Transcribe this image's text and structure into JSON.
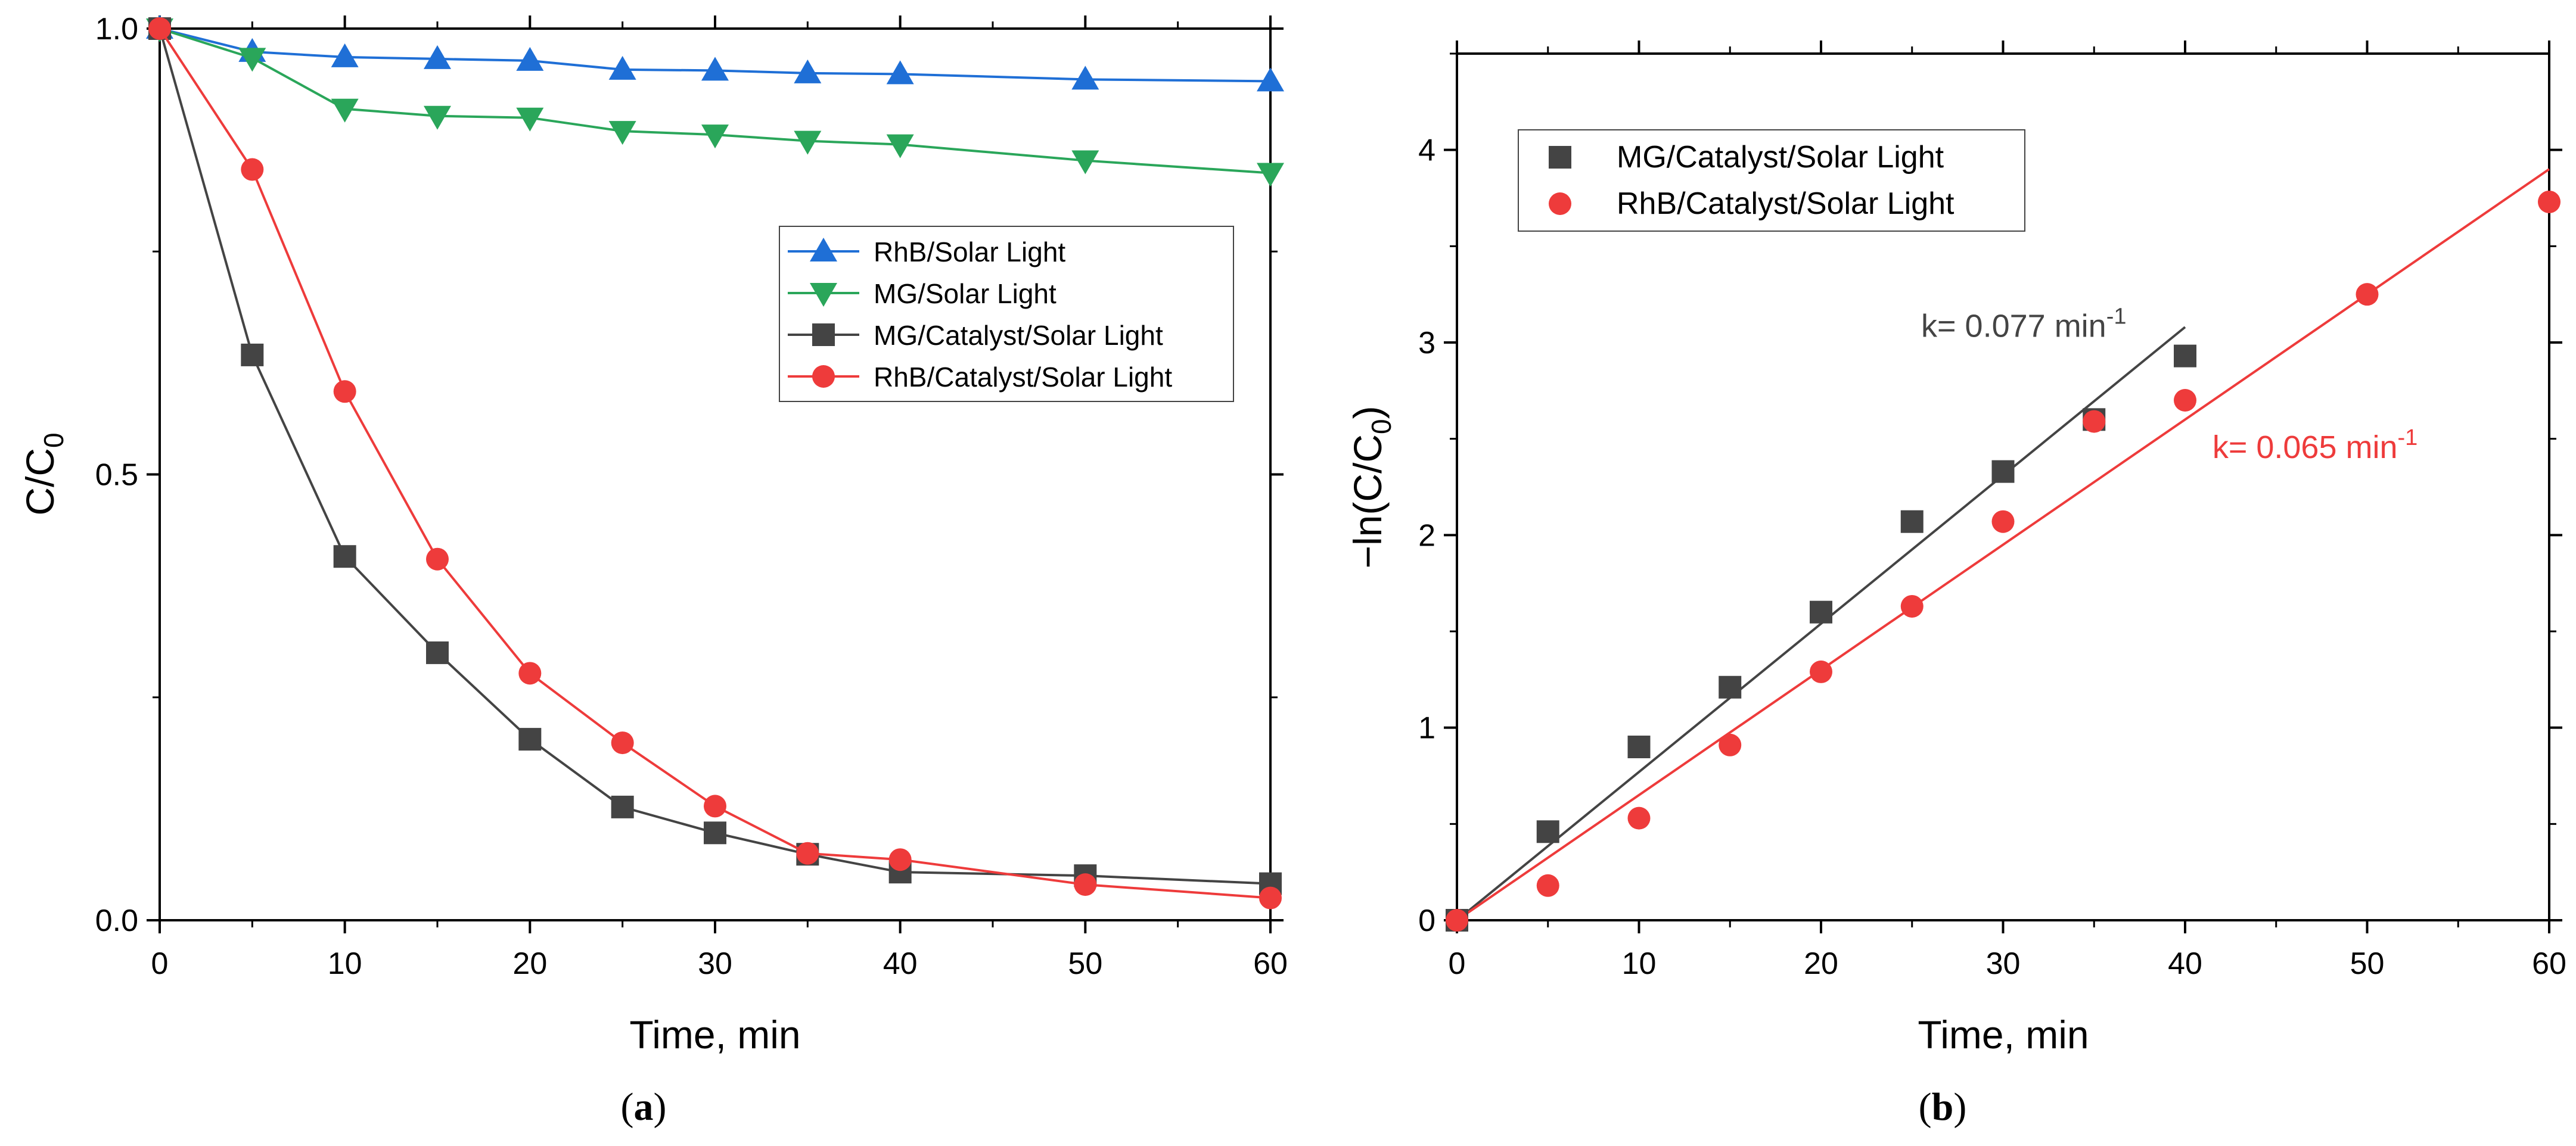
{
  "chart_data": [
    {
      "panel": "a",
      "panel_label": "a",
      "type": "line",
      "title": "",
      "xlabel": "Time, min",
      "ylabel_main": "C/C",
      "ylabel_sub": "0",
      "xlim": [
        0,
        60
      ],
      "ylim": [
        0,
        1.0
      ],
      "xticks": [
        0,
        10,
        20,
        30,
        40,
        50,
        60
      ],
      "yticks": [
        0.0,
        0.5,
        1.0
      ],
      "ytick_labels": [
        "0.0",
        "0.5",
        "1.0"
      ],
      "legend_position": "center-right",
      "grid": false,
      "series": [
        {
          "name": "RhB/Solar Light",
          "color": "#1f6fd6",
          "marker": "triangle-up",
          "x": [
            0,
            5,
            10,
            15,
            20,
            25,
            30,
            35,
            40,
            50,
            60
          ],
          "y": [
            1.0,
            0.974,
            0.968,
            0.966,
            0.964,
            0.954,
            0.953,
            0.95,
            0.949,
            0.943,
            0.941
          ]
        },
        {
          "name": "MG/Solar Light",
          "color": "#2aa65a",
          "marker": "triangle-down",
          "x": [
            0,
            5,
            10,
            15,
            20,
            25,
            30,
            35,
            40,
            50,
            60
          ],
          "y": [
            1.0,
            0.967,
            0.91,
            0.902,
            0.9,
            0.885,
            0.881,
            0.874,
            0.87,
            0.852,
            0.838
          ]
        },
        {
          "name": "MG/Catalyst/Solar Light",
          "color": "#444444",
          "marker": "square",
          "x": [
            0,
            5,
            10,
            15,
            20,
            25,
            30,
            35,
            40,
            50,
            60
          ],
          "y": [
            1.0,
            0.634,
            0.408,
            0.3,
            0.203,
            0.127,
            0.098,
            0.074,
            0.054,
            0.05,
            0.041
          ]
        },
        {
          "name": "RhB/Catalyst/Solar Light",
          "color": "#ee3b3b",
          "marker": "circle",
          "x": [
            0,
            5,
            10,
            15,
            20,
            25,
            30,
            35,
            40,
            50,
            60
          ],
          "y": [
            1.0,
            0.842,
            0.593,
            0.405,
            0.277,
            0.199,
            0.128,
            0.075,
            0.068,
            0.04,
            0.025
          ]
        }
      ]
    },
    {
      "panel": "b",
      "panel_label": "b",
      "type": "scatter",
      "title": "",
      "xlabel": "Time, min",
      "ylabel_main": "−ln(C/C",
      "ylabel_sub": "0",
      "ylabel_end": ")",
      "xlim": [
        0,
        60
      ],
      "ylim": [
        0,
        4.5
      ],
      "xticks": [
        0,
        10,
        20,
        30,
        40,
        50,
        60
      ],
      "yticks": [
        0,
        1,
        2,
        3,
        4
      ],
      "ytick_labels": [
        "0",
        "1",
        "2",
        "3",
        "4"
      ],
      "legend_position": "top-left",
      "grid": false,
      "series": [
        {
          "name": "MG/Catalyst/Solar Light",
          "color": "#444444",
          "marker": "square",
          "x": [
            0,
            5,
            10,
            15,
            20,
            25,
            30,
            35,
            40
          ],
          "y": [
            0,
            0.46,
            0.9,
            1.21,
            1.6,
            2.07,
            2.33,
            2.6,
            2.93
          ]
        },
        {
          "name": "RhB/Catalyst/Solar Light",
          "color": "#ee3b3b",
          "marker": "circle",
          "x": [
            0,
            5,
            10,
            15,
            20,
            25,
            30,
            35,
            40,
            50,
            60
          ],
          "y": [
            0,
            0.18,
            0.53,
            0.91,
            1.29,
            1.63,
            2.07,
            2.59,
            2.7,
            3.25,
            3.73
          ]
        }
      ],
      "fits": [
        {
          "series": "MG/Catalyst/Solar Light",
          "color": "#444444",
          "slope": 0.077,
          "x_range": [
            0,
            40
          ],
          "label_main": "k= 0.077 min",
          "label_sup": "-1",
          "label_anchor": [
            25.5,
            3.03
          ]
        },
        {
          "series": "RhB/Catalyst/Solar Light",
          "color": "#ee3b3b",
          "slope": 0.065,
          "x_range": [
            0,
            60
          ],
          "label_main": "k= 0.065 min",
          "label_sup": "-1",
          "label_anchor": [
            41.5,
            2.4
          ]
        }
      ]
    }
  ]
}
